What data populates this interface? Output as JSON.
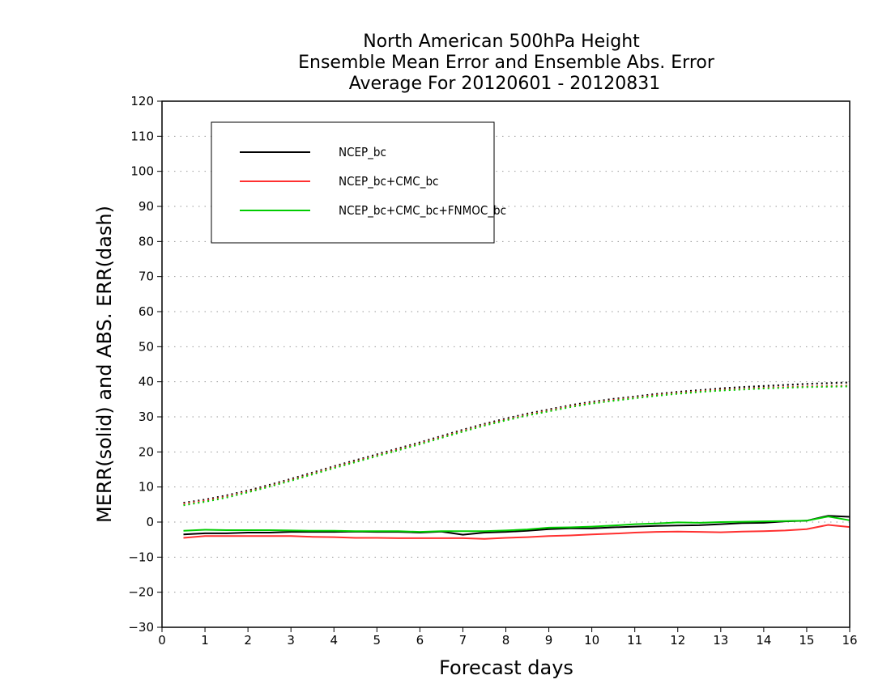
{
  "chart_data": {
    "type": "line",
    "title_lines": [
      "North American 500hPa Height",
      "Ensemble Mean Error and Ensemble Abs. Error",
      "Average For 20120601 - 20120831"
    ],
    "xlabel": "Forecast days",
    "ylabel": "MERR(solid) and ABS. ERR(dash)",
    "xlim": [
      0,
      16
    ],
    "ylim": [
      -30,
      120
    ],
    "x_ticks": [
      "0",
      "1",
      "2",
      "3",
      "4",
      "5",
      "6",
      "7",
      "8",
      "9",
      "10",
      "11",
      "12",
      "13",
      "14",
      "15",
      "16"
    ],
    "y_ticks": [
      "120",
      "110",
      "100",
      "90",
      "80",
      "70",
      "60",
      "50",
      "40",
      "30",
      "20",
      "10",
      "0",
      "−10",
      "−20",
      "−30"
    ],
    "grid": "horizontal dotted",
    "legend_position": "top-left",
    "x": [
      0.5,
      1,
      1.5,
      2,
      2.5,
      3,
      3.5,
      4,
      4.5,
      5,
      5.5,
      6,
      6.5,
      7,
      7.5,
      8,
      8.5,
      9,
      9.5,
      10,
      10.5,
      11,
      11.5,
      12,
      12.5,
      13,
      13.5,
      14,
      14.5,
      15,
      15.5,
      16
    ],
    "series": [
      {
        "name": "NCEP_bc",
        "color": "#000000",
        "merr": [
          -3.5,
          -3.2,
          -3.2,
          -3.0,
          -3.0,
          -2.8,
          -2.8,
          -2.8,
          -2.7,
          -2.8,
          -2.8,
          -3.0,
          -2.7,
          -3.6,
          -3.0,
          -2.8,
          -2.5,
          -2.0,
          -1.8,
          -1.8,
          -1.5,
          -1.3,
          -1.1,
          -1.0,
          -0.9,
          -0.6,
          -0.3,
          -0.2,
          0.2,
          0.4,
          1.8,
          1.5
        ],
        "abs_err": [
          5.5,
          6.4,
          7.6,
          9.0,
          10.6,
          12.3,
          14.1,
          15.9,
          17.6,
          19.3,
          21.0,
          22.7,
          24.5,
          26.3,
          28.0,
          29.5,
          30.9,
          32.1,
          33.3,
          34.3,
          35.1,
          35.8,
          36.5,
          37.1,
          37.6,
          38.1,
          38.5,
          38.8,
          39.1,
          39.4,
          39.6,
          39.8
        ]
      },
      {
        "name": "NCEP_bc+CMC_bc",
        "color": "#ff3030",
        "merr": [
          -4.5,
          -4.0,
          -4.0,
          -4.0,
          -4.0,
          -4.0,
          -4.2,
          -4.3,
          -4.5,
          -4.5,
          -4.6,
          -4.6,
          -4.6,
          -4.6,
          -4.8,
          -4.5,
          -4.3,
          -4.0,
          -3.8,
          -3.5,
          -3.3,
          -3.0,
          -2.8,
          -2.7,
          -2.8,
          -2.9,
          -2.7,
          -2.6,
          -2.4,
          -2.0,
          -0.8,
          -1.4
        ],
        "abs_err": [
          5.2,
          6.1,
          7.3,
          8.7,
          10.3,
          12.0,
          13.8,
          15.6,
          17.3,
          19.0,
          20.7,
          22.4,
          24.2,
          26.0,
          27.7,
          29.2,
          30.6,
          31.8,
          33.0,
          34.0,
          34.8,
          35.5,
          36.2,
          36.8,
          37.3,
          37.7,
          38.0,
          38.3,
          38.5,
          38.7,
          38.8,
          38.9
        ]
      },
      {
        "name": "NCEP_bc+CMC_bc+FNMOC_bc",
        "color": "#00cc00",
        "merr": [
          -2.5,
          -2.2,
          -2.3,
          -2.3,
          -2.3,
          -2.4,
          -2.5,
          -2.5,
          -2.6,
          -2.6,
          -2.6,
          -2.8,
          -2.6,
          -2.6,
          -2.6,
          -2.4,
          -2.1,
          -1.6,
          -1.5,
          -1.3,
          -1.0,
          -0.6,
          -0.4,
          -0.1,
          -0.2,
          0.0,
          0.1,
          0.2,
          0.3,
          0.4,
          1.6,
          0.5
        ],
        "abs_err": [
          4.8,
          5.8,
          7.0,
          8.5,
          10.1,
          11.8,
          13.6,
          15.4,
          17.1,
          18.8,
          20.5,
          22.2,
          24.0,
          25.8,
          27.5,
          29.0,
          30.4,
          31.6,
          32.8,
          33.8,
          34.6,
          35.3,
          36.0,
          36.6,
          37.1,
          37.5,
          37.8,
          38.1,
          38.3,
          38.5,
          38.6,
          38.7
        ]
      }
    ]
  }
}
